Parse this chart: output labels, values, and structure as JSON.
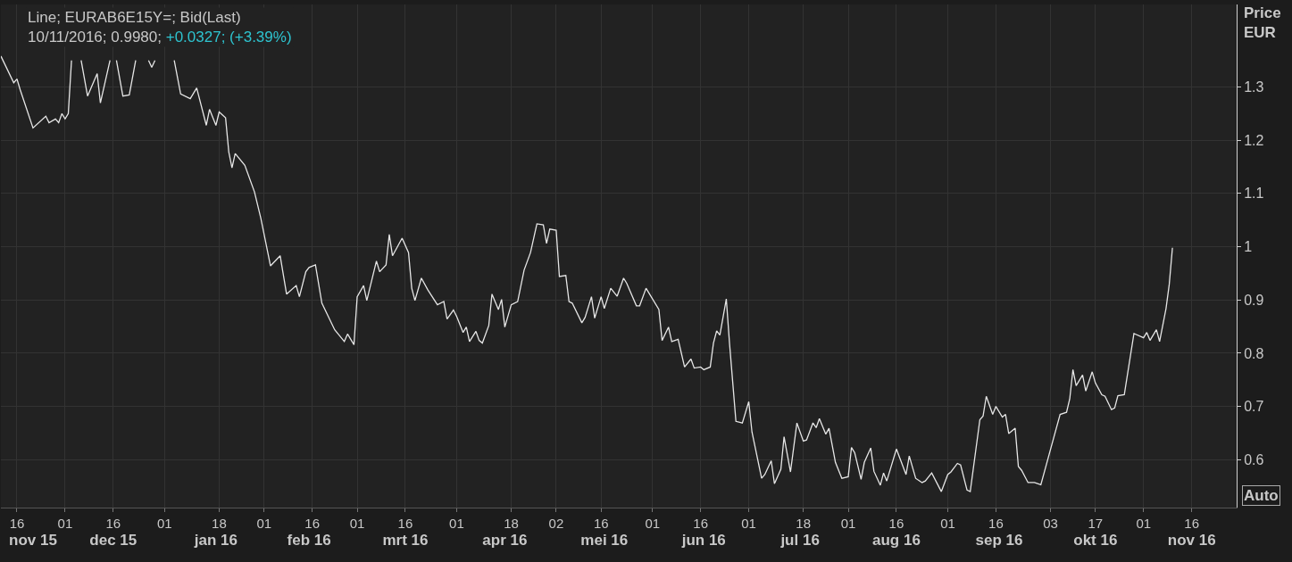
{
  "chart_data": {
    "type": "line",
    "title": "Line; EURAB6E15Y=; Bid(Last)",
    "subtitle": "10/11/2016; 0.9980; +0.0327; (+3.39%)",
    "ylabel": "Price EUR",
    "annotations": [
      "Auto"
    ],
    "x": [
      "2015-11-11",
      "2015-11-15",
      "2015-11-16",
      "2015-11-17",
      "2015-11-21",
      "2015-11-25",
      "2015-11-26",
      "2015-11-28",
      "2015-11-29",
      "2015-11-30",
      "2015-12-01",
      "2015-12-02",
      "2015-12-03",
      "2015-12-04",
      "2015-12-06",
      "2015-12-08",
      "2015-12-11",
      "2015-12-12",
      "2015-12-15",
      "2015-12-16",
      "2015-12-17",
      "2015-12-19",
      "2015-12-21",
      "2015-12-23",
      "2015-12-25",
      "2015-12-27",
      "2015-12-28",
      "2015-12-29",
      "2015-12-31",
      "2016-01-04",
      "2016-01-06",
      "2016-01-09",
      "2016-01-11",
      "2016-01-14",
      "2016-01-15",
      "2016-01-17",
      "2016-01-18",
      "2016-01-20",
      "2016-01-21",
      "2016-01-22",
      "2016-01-23",
      "2016-01-26",
      "2016-01-29",
      "2016-01-31",
      "2016-02-03",
      "2016-02-06",
      "2016-02-08",
      "2016-02-11",
      "2016-02-12",
      "2016-02-14",
      "2016-02-15",
      "2016-02-17",
      "2016-02-19",
      "2016-02-23",
      "2016-02-26",
      "2016-02-27",
      "2016-02-29",
      "2016-03-01",
      "2016-03-03",
      "2016-03-04",
      "2016-03-07",
      "2016-03-08",
      "2016-03-10",
      "2016-03-11",
      "2016-03-12",
      "2016-03-15",
      "2016-03-17",
      "2016-03-18",
      "2016-03-19",
      "2016-03-21",
      "2016-03-23",
      "2016-03-26",
      "2016-03-28",
      "2016-03-29",
      "2016-03-31",
      "2016-04-01",
      "2016-04-03",
      "2016-04-04",
      "2016-04-05",
      "2016-04-07",
      "2016-04-08",
      "2016-04-09",
      "2016-04-11",
      "2016-04-12",
      "2016-04-14",
      "2016-04-15",
      "2016-04-16",
      "2016-04-18",
      "2016-04-20",
      "2016-04-22",
      "2016-04-24",
      "2016-04-26",
      "2016-04-28",
      "2016-04-29",
      "2016-04-30",
      "2016-05-02",
      "2016-05-03",
      "2016-05-05",
      "2016-05-06",
      "2016-05-07",
      "2016-05-10",
      "2016-05-11",
      "2016-05-13",
      "2016-05-14",
      "2016-05-16",
      "2016-05-17",
      "2016-05-19",
      "2016-05-21",
      "2016-05-23",
      "2016-05-24",
      "2016-05-27",
      "2016-05-28",
      "2016-05-30",
      "2016-06-03",
      "2016-06-04",
      "2016-06-06",
      "2016-06-07",
      "2016-06-09",
      "2016-06-11",
      "2016-06-13",
      "2016-06-14",
      "2016-06-16",
      "2016-06-17",
      "2016-06-19",
      "2016-06-20",
      "2016-06-21",
      "2016-06-22",
      "2016-06-24",
      "2016-06-25",
      "2016-06-27",
      "2016-06-29",
      "2016-07-01",
      "2016-07-02",
      "2016-07-05",
      "2016-07-06",
      "2016-07-08",
      "2016-07-09",
      "2016-07-11",
      "2016-07-12",
      "2016-07-14",
      "2016-07-16",
      "2016-07-18",
      "2016-07-19",
      "2016-07-21",
      "2016-07-22",
      "2016-07-23",
      "2016-07-25",
      "2016-07-26",
      "2016-07-28",
      "2016-07-30",
      "2016-08-01",
      "2016-08-02",
      "2016-08-03",
      "2016-08-05",
      "2016-08-06",
      "2016-08-08",
      "2016-08-09",
      "2016-08-11",
      "2016-08-12",
      "2016-08-13",
      "2016-08-16",
      "2016-08-19",
      "2016-08-20",
      "2016-08-22",
      "2016-08-24",
      "2016-08-25",
      "2016-08-27",
      "2016-08-30",
      "2016-09-01",
      "2016-09-02",
      "2016-09-04",
      "2016-09-05",
      "2016-09-07",
      "2016-09-08",
      "2016-09-11",
      "2016-09-12",
      "2016-09-13",
      "2016-09-15",
      "2016-09-16",
      "2016-09-18",
      "2016-09-19",
      "2016-09-20",
      "2016-09-22",
      "2016-09-23",
      "2016-09-24",
      "2016-09-26",
      "2016-09-28",
      "2016-09-30",
      "2016-10-06",
      "2016-10-08",
      "2016-10-09",
      "2016-10-10",
      "2016-10-11",
      "2016-10-13",
      "2016-10-14",
      "2016-10-16",
      "2016-10-17",
      "2016-10-19",
      "2016-10-20",
      "2016-10-22",
      "2016-10-23",
      "2016-10-24",
      "2016-10-26",
      "2016-10-29",
      "2016-11-01",
      "2016-11-02",
      "2016-11-03",
      "2016-11-05",
      "2016-11-06",
      "2016-11-08",
      "2016-11-09",
      "2016-11-10"
    ],
    "series": [
      {
        "color": "#e6e6e6",
        "values": [
          1.358,
          1.308,
          1.315,
          1.295,
          1.223,
          1.245,
          1.233,
          1.24,
          1.233,
          1.25,
          1.24,
          1.25,
          1.35,
          null,
          1.35,
          1.283,
          1.325,
          1.27,
          1.35,
          null,
          1.35,
          1.283,
          1.285,
          1.35,
          null,
          1.35,
          1.337,
          1.35,
          null,
          1.35,
          1.287,
          1.278,
          1.298,
          1.228,
          1.258,
          1.228,
          1.253,
          1.242,
          1.178,
          1.148,
          1.175,
          1.153,
          1.103,
          1.053,
          0.964,
          0.983,
          0.911,
          0.927,
          0.906,
          0.953,
          0.961,
          0.966,
          0.894,
          0.844,
          0.822,
          0.836,
          0.816,
          0.906,
          0.927,
          0.899,
          0.973,
          0.953,
          0.966,
          1.023,
          0.983,
          1.016,
          0.989,
          0.922,
          0.899,
          0.941,
          0.919,
          0.891,
          0.897,
          0.864,
          0.881,
          0.869,
          0.839,
          0.849,
          0.822,
          0.841,
          0.824,
          0.819,
          0.852,
          0.911,
          0.882,
          0.901,
          0.849,
          0.891,
          0.897,
          0.956,
          0.989,
          1.043,
          1.041,
          1.006,
          1.033,
          1.031,
          0.944,
          0.946,
          0.897,
          0.894,
          0.857,
          0.867,
          0.906,
          0.866,
          0.906,
          0.884,
          0.922,
          0.907,
          0.941,
          0.931,
          0.889,
          0.889,
          0.922,
          0.882,
          0.824,
          0.849,
          0.822,
          0.826,
          0.774,
          0.789,
          0.772,
          0.774,
          0.769,
          0.774,
          0.819,
          0.842,
          0.834,
          0.902,
          0.819,
          0.672,
          0.669,
          0.709,
          0.652,
          0.565,
          0.572,
          0.598,
          0.555,
          0.582,
          0.643,
          0.577,
          0.669,
          0.635,
          0.637,
          0.669,
          0.66,
          0.677,
          0.648,
          0.659,
          0.595,
          0.565,
          0.568,
          0.623,
          0.613,
          0.563,
          0.595,
          0.622,
          0.578,
          0.552,
          0.575,
          0.56,
          0.62,
          0.572,
          0.607,
          0.565,
          0.557,
          0.56,
          0.575,
          0.54,
          0.572,
          0.577,
          0.593,
          0.59,
          0.543,
          0.54,
          0.675,
          0.682,
          0.719,
          0.685,
          0.7,
          0.68,
          0.685,
          0.649,
          0.659,
          0.587,
          0.58,
          0.557,
          0.557,
          0.553,
          0.685,
          0.689,
          0.714,
          0.769,
          0.739,
          0.759,
          0.729,
          0.765,
          0.744,
          0.722,
          0.719,
          0.694,
          0.697,
          0.72,
          0.722,
          0.837,
          0.829,
          0.839,
          0.824,
          0.844,
          0.822,
          0.884,
          0.929,
          0.998
        ]
      }
    ],
    "xlim": [
      "2015-11-11",
      "2016-11-30"
    ],
    "xticks": [
      {
        "value": "2015-11-16",
        "label": "16"
      },
      {
        "value": "2015-12-01",
        "label": "01"
      },
      {
        "value": "2015-12-16",
        "label": "16"
      },
      {
        "value": "2016-01-01",
        "label": "01"
      },
      {
        "value": "2016-01-18",
        "label": "18"
      },
      {
        "value": "2016-02-01",
        "label": "01"
      },
      {
        "value": "2016-02-16",
        "label": "16"
      },
      {
        "value": "2016-03-01",
        "label": "01"
      },
      {
        "value": "2016-03-16",
        "label": "16"
      },
      {
        "value": "2016-04-01",
        "label": "01"
      },
      {
        "value": "2016-04-18",
        "label": "18"
      },
      {
        "value": "2016-05-02",
        "label": "02"
      },
      {
        "value": "2016-05-16",
        "label": "16"
      },
      {
        "value": "2016-06-01",
        "label": "01"
      },
      {
        "value": "2016-06-16",
        "label": "16"
      },
      {
        "value": "2016-07-01",
        "label": "01"
      },
      {
        "value": "2016-07-18",
        "label": "18"
      },
      {
        "value": "2016-08-01",
        "label": "01"
      },
      {
        "value": "2016-08-16",
        "label": "16"
      },
      {
        "value": "2016-09-01",
        "label": "01"
      },
      {
        "value": "2016-09-16",
        "label": "16"
      },
      {
        "value": "2016-10-03",
        "label": "03"
      },
      {
        "value": "2016-10-17",
        "label": "17"
      },
      {
        "value": "2016-11-01",
        "label": "01"
      },
      {
        "value": "2016-11-16",
        "label": "16"
      }
    ],
    "x2lim": [
      "2015-11-11",
      "2016-11-30"
    ],
    "x2ticks": [
      {
        "value": "2015-11-21",
        "label": "nov 15"
      },
      {
        "value": "2015-12-16",
        "label": "dec 15"
      },
      {
        "value": "2016-01-17",
        "label": "jan 16"
      },
      {
        "value": "2016-02-15",
        "label": "feb 16"
      },
      {
        "value": "2016-03-16",
        "label": "mrt 16"
      },
      {
        "value": "2016-04-16",
        "label": "apr 16"
      },
      {
        "value": "2016-05-17",
        "label": "mei 16"
      },
      {
        "value": "2016-06-17",
        "label": "jun 16"
      },
      {
        "value": "2016-07-17",
        "label": "jul 16"
      },
      {
        "value": "2016-08-16",
        "label": "aug 16"
      },
      {
        "value": "2016-09-17",
        "label": "sep 16"
      },
      {
        "value": "2016-10-17",
        "label": "okt 16"
      },
      {
        "value": "2016-11-16",
        "label": "nov 16"
      }
    ],
    "ylim": [
      0.51,
      1.455
    ],
    "yticks": [
      0.6,
      0.7,
      0.8,
      0.9,
      1,
      1.1,
      1.2,
      1.3
    ],
    "grid": true
  }
}
